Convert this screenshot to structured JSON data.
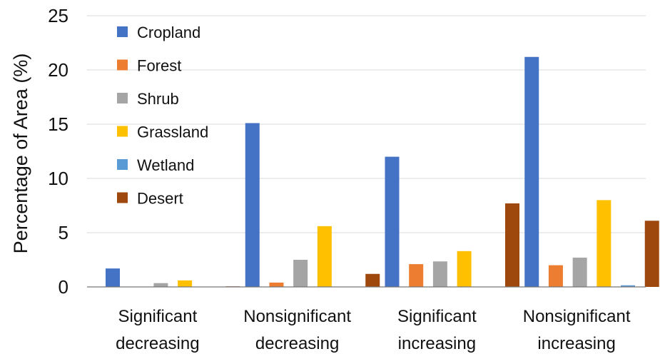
{
  "chart_data": {
    "type": "bar",
    "title": "",
    "xlabel": "",
    "ylabel": "Percentage of Area (%)",
    "ylim": [
      0,
      25
    ],
    "yticks": [
      0,
      5,
      10,
      15,
      20,
      25
    ],
    "grid": true,
    "legend_position": "top-left",
    "categories": [
      [
        "Significant",
        "decreasing"
      ],
      [
        "Nonsignificant",
        "decreasing"
      ],
      [
        "Significant",
        "increasing"
      ],
      [
        "Nonsignificant",
        "increasing"
      ]
    ],
    "series": [
      {
        "name": "Cropland",
        "color": "#4472C4",
        "values": [
          1.7,
          15.1,
          12.0,
          21.2
        ]
      },
      {
        "name": "Forest",
        "color": "#ED7D31",
        "values": [
          0.0,
          0.4,
          2.1,
          2.0
        ]
      },
      {
        "name": "Shrub",
        "color": "#A5A5A5",
        "values": [
          0.35,
          2.5,
          2.35,
          2.7
        ]
      },
      {
        "name": "Grassland",
        "color": "#FFC000",
        "values": [
          0.6,
          5.6,
          3.3,
          8.0
        ]
      },
      {
        "name": "Wetland",
        "color": "#5B9BD5",
        "values": [
          0.0,
          0.0,
          0.0,
          0.15
        ]
      },
      {
        "name": "Desert",
        "color": "#9E480E",
        "values": [
          0.05,
          1.2,
          7.7,
          6.1
        ]
      }
    ]
  }
}
